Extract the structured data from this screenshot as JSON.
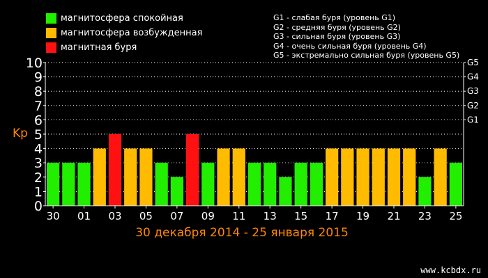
{
  "legend": [
    {
      "label": "магнитосфера спокойная",
      "color": "#22ee00"
    },
    {
      "label": "магнитосфера возбужденная",
      "color": "#ffbb00"
    },
    {
      "label": "магнитная буря",
      "color": "#ff1111"
    }
  ],
  "g_levels": [
    "G1 - слабая буря (уровень G1)",
    "G2 - средняя буря (уровень G2)",
    "G3 - сильная буря (уровень G3)",
    "G4 - очень сильная буря (уровень G4)",
    "G5 - экстремально сильная буря (уровень G5)"
  ],
  "watermark": "www.kcbdx.ru",
  "chart_data": {
    "type": "bar",
    "title": "",
    "xlabel": "30 декабря 2014 - 25 января 2015",
    "ylabel": "Kp",
    "ylim": [
      0,
      10
    ],
    "yticks": [
      "0",
      "1",
      "2",
      "3",
      "4",
      "5",
      "6",
      "7",
      "8",
      "9",
      "10"
    ],
    "right_ticks": [
      {
        "label": "G1",
        "value": 6
      },
      {
        "label": "G2",
        "value": 7
      },
      {
        "label": "G3",
        "value": 8
      },
      {
        "label": "G4",
        "value": 9
      },
      {
        "label": "G5",
        "value": 10
      }
    ],
    "xtick_labels": [
      "30",
      "01",
      "03",
      "05",
      "07",
      "09",
      "11",
      "13",
      "15",
      "17",
      "19",
      "21",
      "23",
      "25"
    ],
    "values": [
      3,
      3,
      3,
      4,
      5,
      4,
      4,
      3,
      2,
      5,
      3,
      4,
      4,
      3,
      3,
      2,
      3,
      3,
      4,
      4,
      4,
      4,
      4,
      4,
      2,
      4,
      3
    ],
    "colors": {
      "quiet": "#22ee00",
      "active": "#ffbb00",
      "storm": "#ff1111"
    },
    "grid": true
  }
}
